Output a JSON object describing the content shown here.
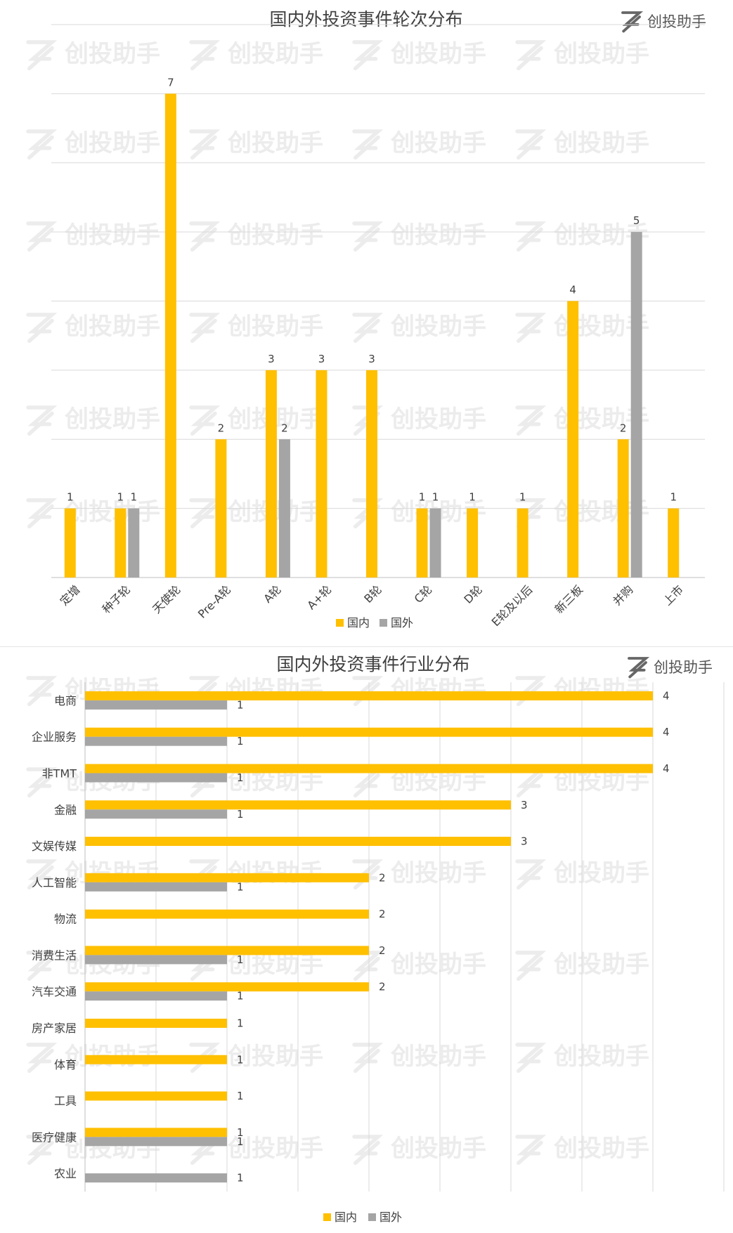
{
  "brand": {
    "name": "创投助手",
    "logo": "z-logo-icon"
  },
  "watermark": "创投助手",
  "colors": {
    "domestic": "#FFC000",
    "foreign": "#A5A5A5",
    "grid": "#D9D9D9",
    "text": "#404040"
  },
  "chart_data": [
    {
      "type": "bar",
      "title": "国内外投资事件轮次分布",
      "categories": [
        "定增",
        "种子轮",
        "天使轮",
        "Pre-A轮",
        "A轮",
        "A+轮",
        "B轮",
        "C轮",
        "D轮",
        "E轮及以后",
        "新三板",
        "并购",
        "上市"
      ],
      "series": [
        {
          "name": "国内",
          "values": [
            1,
            1,
            7,
            2,
            3,
            3,
            3,
            1,
            1,
            1,
            4,
            2,
            1
          ]
        },
        {
          "name": "国外",
          "values": [
            null,
            1,
            null,
            null,
            2,
            null,
            null,
            1,
            null,
            null,
            null,
            5,
            null
          ]
        }
      ],
      "ylim": [
        0,
        8
      ],
      "grid": true,
      "legend": "bottom"
    },
    {
      "type": "bar",
      "orientation": "horizontal",
      "title": "国内外投资事件行业分布",
      "categories": [
        "电商",
        "企业服务",
        "非TMT",
        "金融",
        "文娱传媒",
        "人工智能",
        "物流",
        "消费生活",
        "汽车交通",
        "房产家居",
        "体育",
        "工具",
        "医疗健康",
        "农业"
      ],
      "series": [
        {
          "name": "国内",
          "values": [
            4,
            4,
            4,
            3,
            3,
            2,
            2,
            2,
            2,
            1,
            1,
            1,
            1,
            null
          ]
        },
        {
          "name": "国外",
          "values": [
            1,
            1,
            1,
            1,
            null,
            1,
            null,
            1,
            1,
            null,
            null,
            null,
            1,
            1
          ]
        }
      ],
      "xlim": [
        0,
        4.5
      ],
      "grid": true,
      "legend": "bottom"
    }
  ]
}
